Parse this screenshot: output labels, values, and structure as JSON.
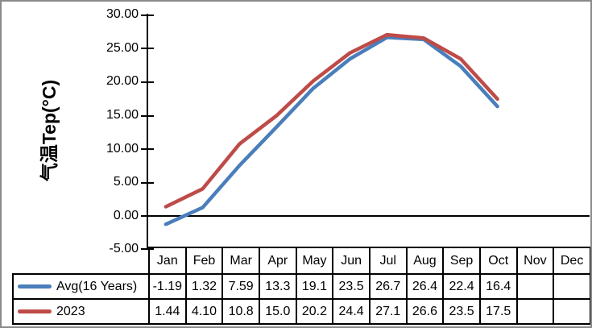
{
  "chart_data": {
    "type": "line",
    "title": "",
    "xlabel": "",
    "ylabel": "气温Tep(°C)",
    "categories": [
      "Jan",
      "Feb",
      "Mar",
      "Apr",
      "May",
      "Jun",
      "Jul",
      "Aug",
      "Sep",
      "Oct",
      "Nov",
      "Dec"
    ],
    "series": [
      {
        "name": "Avg(16 Years)",
        "color": "#4a7ebb",
        "values": [
          -1.19,
          1.32,
          7.59,
          13.3,
          19.1,
          23.5,
          26.7,
          26.4,
          22.4,
          16.4,
          null,
          null
        ],
        "display": [
          "-1.19",
          "1.32",
          "7.59",
          "13.3",
          "19.1",
          "23.5",
          "26.7",
          "26.4",
          "22.4",
          "16.4",
          "",
          ""
        ]
      },
      {
        "name": "2023",
        "color": "#be4b48",
        "values": [
          1.44,
          4.1,
          10.8,
          15.0,
          20.2,
          24.4,
          27.1,
          26.6,
          23.5,
          17.5,
          null,
          null
        ],
        "display": [
          "1.44",
          "4.10",
          "10.8",
          "15.0",
          "20.2",
          "24.4",
          "27.1",
          "26.6",
          "23.5",
          "17.5",
          "",
          ""
        ]
      }
    ],
    "ylim": [
      -5,
      30
    ],
    "y_tick_step": 5,
    "y_tick_labels": [
      "30.00",
      "25.00",
      "20.00",
      "15.00",
      "10.00",
      "5.00",
      "0.00",
      "-5.00"
    ],
    "grid": false,
    "zero_line": true,
    "legend_position": "data-table-left"
  },
  "colors": {
    "series_avg": "#4a7ebb",
    "series_2023": "#be4b48",
    "frame_border": "#8a8a8a",
    "axis": "#000000",
    "table_border": "#000000",
    "background": "#ffffff"
  }
}
